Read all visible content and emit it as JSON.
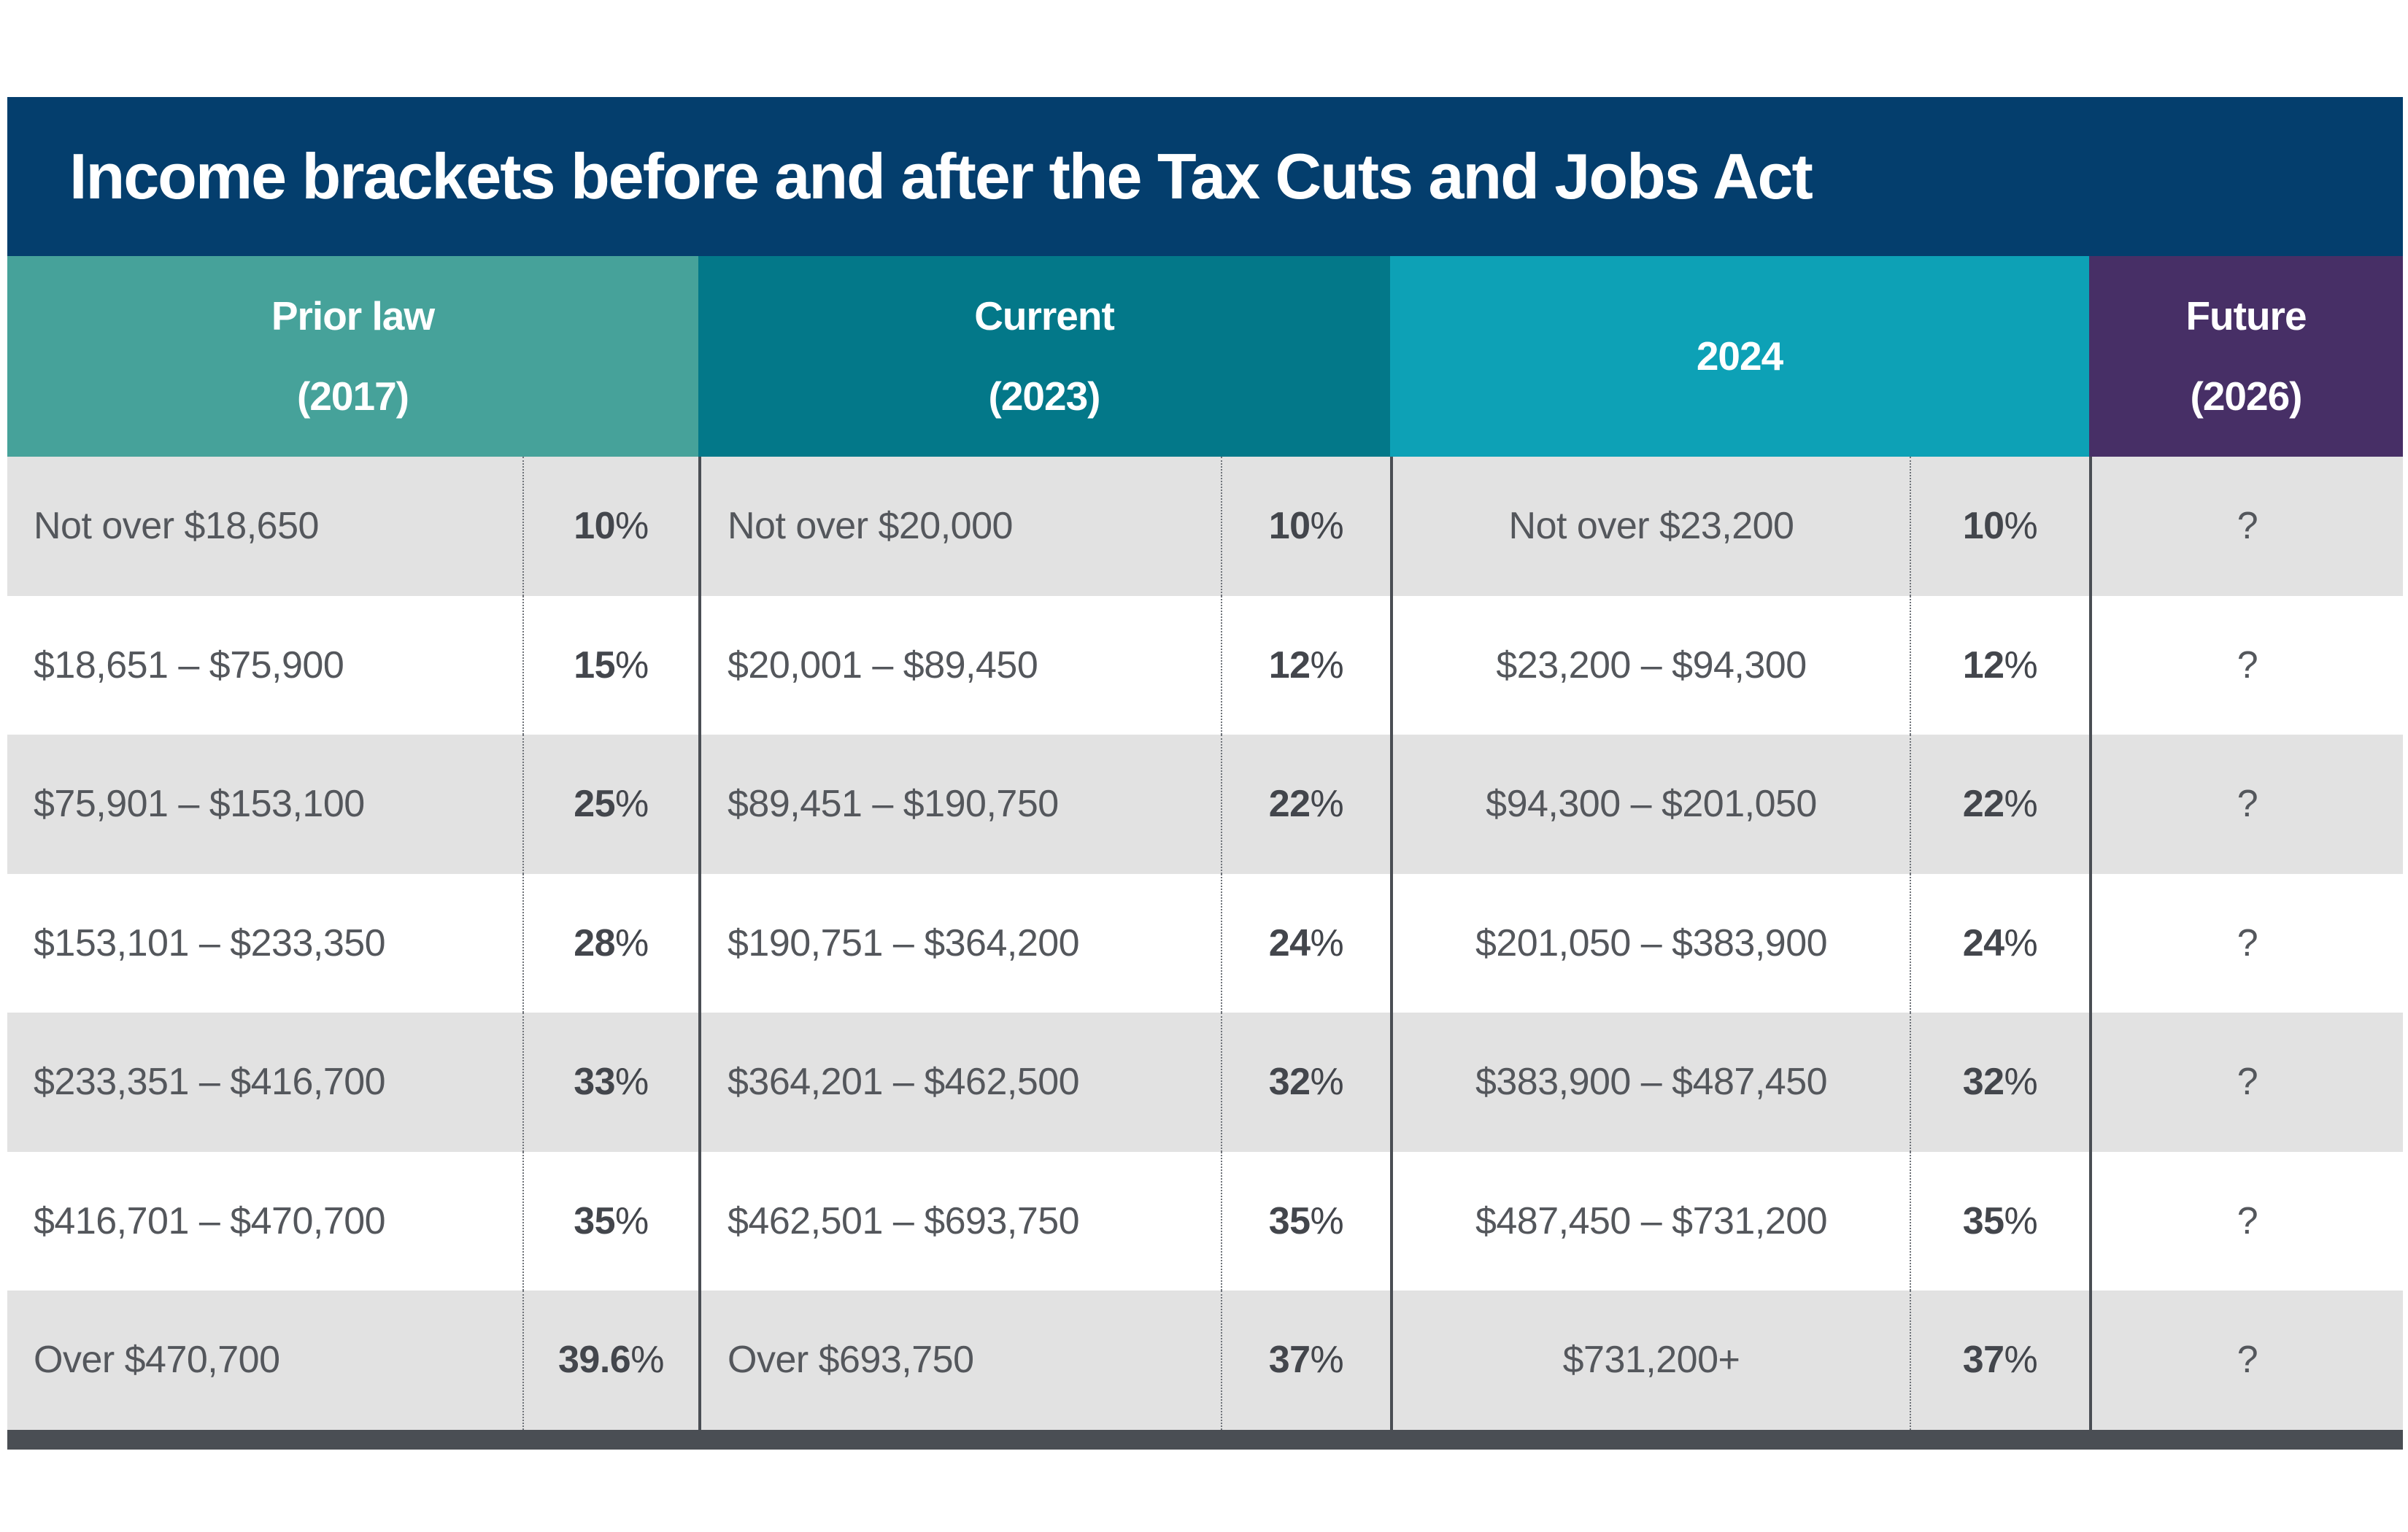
{
  "title": "Income brackets before and after the Tax Cuts and Jobs Act",
  "colors": {
    "title_bg": "#043e6d",
    "title_text": "#ffffff",
    "header_text": "#ffffff",
    "prior_bg": "#46a29a",
    "current_bg": "#037889",
    "y2024_bg": "#0da1b6",
    "future_bg": "#472f66",
    "row_bg": "#ffffff",
    "row_alt_bg": "#e2e2e2",
    "range_text": "#54575c",
    "rate_text": "#43464c",
    "divider_dotted": "#6f7379",
    "divider_solid": "#4a4e54",
    "bottom_bar": "#4a4e54"
  },
  "header": {
    "groups": [
      {
        "line1": "Prior law",
        "line2": "(2017)"
      },
      {
        "line1": "Current",
        "line2": "(2023)"
      },
      {
        "line1": "2024",
        "line2": ""
      },
      {
        "line1": "Future",
        "line2": "(2026)"
      }
    ]
  },
  "chart_data": {
    "type": "table",
    "title": "Income brackets before and after the Tax Cuts and Jobs Act",
    "columns": [
      "Prior law (2017) bracket",
      "Prior law (2017) rate",
      "Current (2023) bracket",
      "Current (2023) rate",
      "2024 bracket",
      "2024 rate",
      "Future (2026) rate"
    ],
    "rows": [
      [
        "Not over $18,650",
        "10%",
        "Not over $20,000",
        "10%",
        "Not over $23,200",
        "10%",
        "?"
      ],
      [
        "$18,651 – $75,900",
        "15%",
        "$20,001 – $89,450",
        "12%",
        "$23,200 – $94,300",
        "12%",
        "?"
      ],
      [
        "$75,901 – $153,100",
        "25%",
        "$89,451 – $190,750",
        "22%",
        "$94,300 – $201,050",
        "22%",
        "?"
      ],
      [
        "$153,101 – $233,350",
        "28%",
        "$190,751 – $364,200",
        "24%",
        "$201,050 – $383,900",
        "24%",
        "?"
      ],
      [
        "$233,351 – $416,700",
        "33%",
        "$364,201 – $462,500",
        "32%",
        "$383,900 – $487,450",
        "32%",
        "?"
      ],
      [
        "$416,701 – $470,700",
        "35%",
        "$462,501 – $693,750",
        "35%",
        "$487,450 – $731,200",
        "35%",
        "?"
      ],
      [
        "Over $470,700",
        "39.6%",
        "Over $693,750",
        "37%",
        "$731,200+",
        "37%",
        "?"
      ]
    ]
  }
}
